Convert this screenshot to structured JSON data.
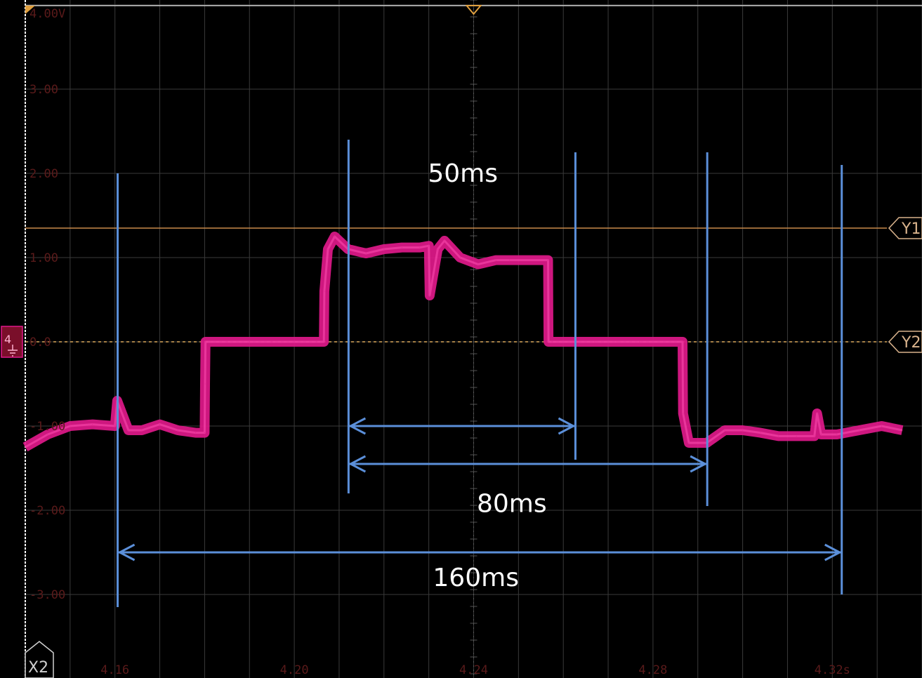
{
  "chart_data": {
    "type": "line",
    "y_tick_labels": [
      "4.00V",
      "3.00",
      "2.00",
      "1.00",
      "0.0",
      "-1.00",
      "-2.00",
      "-3.00"
    ],
    "y_tick_values": [
      4,
      3,
      2,
      1,
      0,
      -1,
      -2,
      -3
    ],
    "x_tick_labels": [
      "4.16",
      "4.20",
      "4.24",
      "4.28",
      "4.32s"
    ],
    "x_tick_values": [
      4.16,
      4.2,
      4.24,
      4.28,
      4.32
    ],
    "ylim": [
      -4,
      4
    ],
    "xlim": [
      4.14,
      4.34
    ],
    "grid": true,
    "series": [
      {
        "color": "#e0198a",
        "x": [
          4.14,
          4.145,
          4.15,
          4.155,
          4.16,
          4.1605,
          4.163,
          4.166,
          4.17,
          4.174,
          4.178,
          4.18,
          4.1801,
          4.1802,
          4.185,
          4.19,
          4.195,
          4.2,
          4.205,
          4.2066,
          4.2067,
          4.2075,
          4.209,
          4.212,
          4.216,
          4.22,
          4.224,
          4.228,
          4.23,
          4.2302,
          4.232,
          4.2335,
          4.237,
          4.241,
          4.245,
          4.248,
          4.2566,
          4.2567,
          4.2575,
          4.262,
          4.267,
          4.272,
          4.277,
          4.2866,
          4.2867,
          4.288,
          4.292,
          4.296,
          4.3,
          4.304,
          4.308,
          4.312,
          4.316,
          4.3166,
          4.3175,
          4.321,
          4.326,
          4.331,
          4.3356
        ],
        "y": [
          -1.25,
          -1.1,
          -1.0,
          -0.98,
          -1.0,
          -0.7,
          -1.05,
          -1.05,
          -0.98,
          -1.05,
          -1.08,
          -1.08,
          -0.5,
          0.0,
          0.0,
          0.0,
          0.0,
          0.0,
          0.0,
          0.0,
          0.6,
          1.1,
          1.25,
          1.1,
          1.05,
          1.1,
          1.12,
          1.12,
          1.14,
          0.55,
          1.1,
          1.2,
          1.0,
          0.92,
          0.97,
          0.97,
          0.97,
          0.0,
          0.0,
          0.0,
          0.0,
          0.0,
          0.0,
          0.0,
          -0.85,
          -1.2,
          -1.2,
          -1.05,
          -1.05,
          -1.08,
          -1.12,
          -1.12,
          -1.12,
          -0.85,
          -1.1,
          -1.1,
          -1.05,
          -1.0,
          -1.05
        ]
      }
    ],
    "reference_lines": [
      {
        "label": "Y1",
        "y": 1.35,
        "color": "#c98a4a",
        "style": "solid"
      },
      {
        "label": "Y2",
        "y": 0.0,
        "color": "#d9a85a",
        "style": "dashed"
      }
    ],
    "vertical_markers": [
      {
        "x": 4.1606,
        "y_range": [
          -3.15,
          2.0
        ]
      },
      {
        "x": 4.2121,
        "y_range": [
          -1.8,
          2.4
        ]
      },
      {
        "x": 4.2627,
        "y_range": [
          -1.4,
          2.25
        ]
      },
      {
        "x": 4.2921,
        "y_range": [
          -1.95,
          2.25
        ]
      },
      {
        "x": 4.3221,
        "y_range": [
          -3.0,
          2.1
        ]
      }
    ],
    "annotations": [
      {
        "text": "50ms",
        "x_start": 4.2121,
        "x_end": 4.2627,
        "arrow_y": -1.0,
        "label_x": 4.2376,
        "label_y": 1.9
      },
      {
        "text": "80ms",
        "x_start": 4.2121,
        "x_end": 4.2921,
        "arrow_y": -1.45,
        "label_x": 4.2485,
        "label_y": -2.02
      },
      {
        "text": "160ms",
        "x_start": 4.1606,
        "x_end": 4.3221,
        "arrow_y": -2.5,
        "label_x": 4.2405,
        "label_y": -2.9
      }
    ],
    "channel_markers": [
      {
        "label": "Y1"
      },
      {
        "label": "Y2"
      },
      {
        "label": "X2"
      },
      {
        "label": "4"
      }
    ],
    "colors": {
      "background": "#000000",
      "grid": "#3a3a3a",
      "trace": "#e0198a",
      "annotation": "#5b8fd9",
      "axis": "#ffffff",
      "trigger": "#e0a040"
    }
  }
}
